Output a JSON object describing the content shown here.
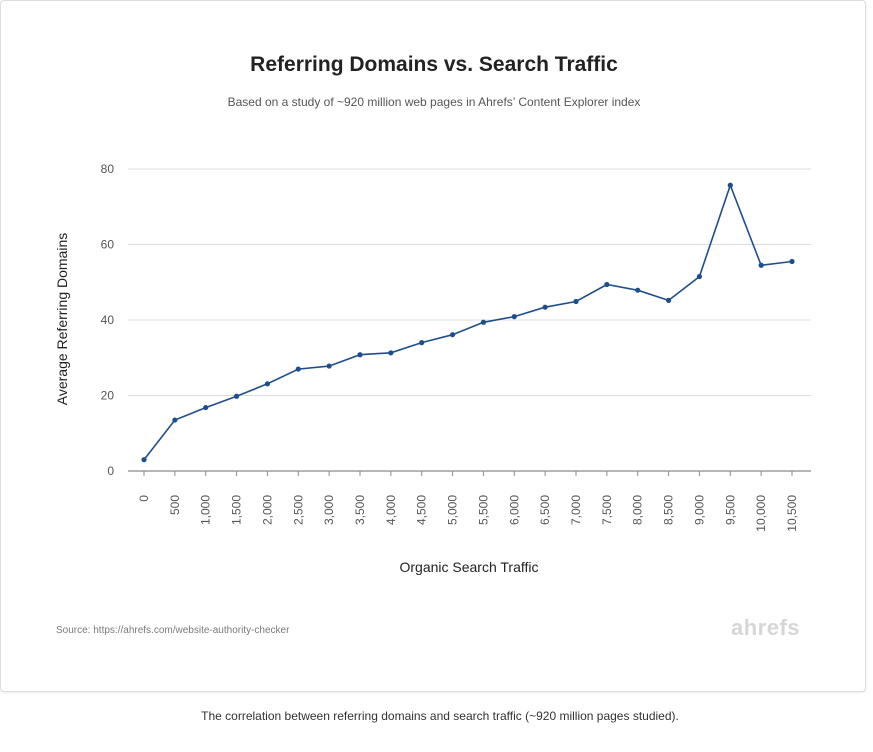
{
  "chart_data": {
    "type": "line",
    "title": "Referring Domains vs. Search Traffic",
    "subtitle": "Based on a study of ~920 million web pages in Ahrefs’ Content Explorer index",
    "xlabel": "Organic Search Traffic",
    "ylabel": "Average Referring Domains",
    "categories": [
      "0",
      "500",
      "1,000",
      "1,500",
      "2,000",
      "2,500",
      "3,000",
      "3,500",
      "4,000",
      "4,500",
      "5,000",
      "5,500",
      "6,000",
      "6,500",
      "7,000",
      "7,500",
      "8,000",
      "8,500",
      "9,000",
      "9,500",
      "10,000",
      "10,500"
    ],
    "series": [
      {
        "values": [
          3,
          13.5,
          16.8,
          19.8,
          23.1,
          27,
          27.8,
          30.8,
          31.3,
          34,
          36.1,
          39.4,
          40.9,
          43.4,
          44.9,
          49.4,
          47.9,
          45.2,
          51.5,
          75.7,
          54.5,
          55.5
        ]
      }
    ],
    "ylim": [
      0,
      80
    ],
    "yticks": [
      "0",
      "20",
      "40",
      "60",
      "80"
    ],
    "grid": true,
    "legend": "none",
    "line_color": "#1f4e8c"
  },
  "source": "Source: https://ahrefs.com/website-authority-checker",
  "brand": "ahrefs",
  "caption": "The correlation between referring domains and search traffic (~920 million pages studied)."
}
